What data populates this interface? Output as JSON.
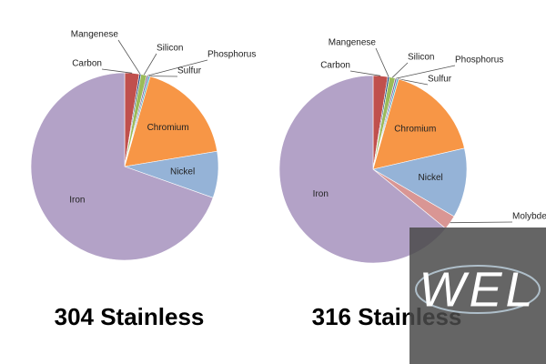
{
  "chart_data": [
    {
      "type": "pie",
      "title": "304 Stainless",
      "categories": [
        "Carbon",
        "Mangenese",
        "Silicon",
        "Phosphorus",
        "Sulfur",
        "Chromium",
        "Nickel",
        "Iron"
      ],
      "values": [
        2.5,
        0.3,
        1,
        0.3,
        0.3,
        18,
        8,
        69.6
      ],
      "colors": [
        "#c0504d",
        "#1f497d",
        "#9bbb59",
        "#8064a2",
        "#4bacc6",
        "#f79646",
        "#95b3d7",
        "#b3a2c7"
      ]
    },
    {
      "type": "pie",
      "title": "316 Stainless",
      "categories": [
        "Carbon",
        "Mangenese",
        "Silicon",
        "Phosphorus",
        "Sulfur",
        "Chromium",
        "Nickel",
        "Molybdenum",
        "Iron"
      ],
      "values": [
        2.5,
        0.3,
        1,
        0.3,
        0.3,
        17,
        12,
        2.5,
        64.1
      ],
      "colors": [
        "#c0504d",
        "#1f497d",
        "#9bbb59",
        "#8064a2",
        "#4bacc6",
        "#f79646",
        "#95b3d7",
        "#d99694",
        "#b3a2c7"
      ]
    }
  ],
  "watermark": "WEL"
}
